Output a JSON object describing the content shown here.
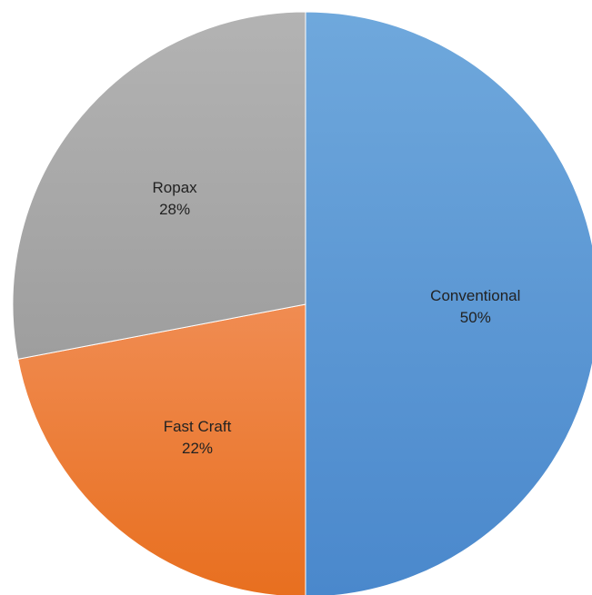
{
  "chart_data": {
    "type": "pie",
    "categories": [
      "Conventional",
      "Fast Craft",
      "Ropax"
    ],
    "values": [
      50,
      22,
      28
    ],
    "value_labels": [
      "50%",
      "22%",
      "28%"
    ],
    "colors": [
      "#5B9BD5",
      "#ED7D31",
      "#A5A5A5"
    ],
    "start_angle_deg": 0,
    "direction": "clockwise",
    "legend": "none",
    "title": ""
  }
}
